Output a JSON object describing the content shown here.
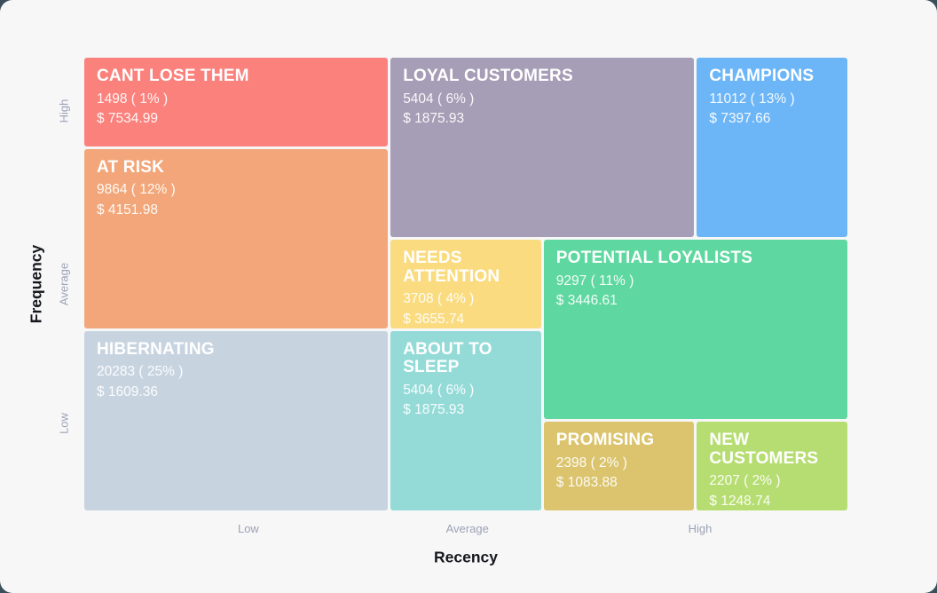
{
  "page": {
    "background_color": "#3B4F5A",
    "card_color": "#F7F7F8"
  },
  "chart_data": {
    "type": "treemap",
    "xlabel": "Recency",
    "ylabel": "Frequency",
    "x_ticks": [
      {
        "label": "Low",
        "pos_percent": 21.5
      },
      {
        "label": "Average",
        "pos_percent": 50.2
      },
      {
        "label": "High",
        "pos_percent": 80.7
      }
    ],
    "y_ticks": [
      {
        "label": "High",
        "pos_percent": 11.8
      },
      {
        "label": "Average",
        "pos_percent": 50
      },
      {
        "label": "Low",
        "pos_percent": 80.8
      }
    ],
    "grid": {
      "columns": 5,
      "rows": 5
    },
    "segments": [
      {
        "slug": "cant-lose-them",
        "name": "CANT LOSE THEM",
        "count": 1498,
        "percent": 1,
        "monetary": 7534.99,
        "count_label": "1498 ( 1% )",
        "monetary_label": "$ 7534.99",
        "color": "#FA817C",
        "recency": "Low",
        "frequency": "High",
        "area": {
          "col": 1,
          "colspan": 2,
          "row": 1,
          "rowspan": 1
        }
      },
      {
        "slug": "loyal-customers",
        "name": "LOYAL CUSTOMERS",
        "count": 5404,
        "percent": 6,
        "monetary": 1875.93,
        "count_label": "5404 ( 6% )",
        "monetary_label": "$ 1875.93",
        "color": "#A69DB6",
        "recency": "Average",
        "frequency": "High",
        "area": {
          "col": 3,
          "colspan": 2,
          "row": 1,
          "rowspan": 2
        }
      },
      {
        "slug": "champions",
        "name": "CHAMPIONS",
        "count": 11012,
        "percent": 13,
        "monetary": 7397.66,
        "count_label": "11012 ( 13% )",
        "monetary_label": "$ 7397.66",
        "color": "#6CB6F8",
        "recency": "High",
        "frequency": "High",
        "area": {
          "col": 5,
          "colspan": 1,
          "row": 1,
          "rowspan": 2
        }
      },
      {
        "slug": "at-risk",
        "name": "AT RISK",
        "count": 9864,
        "percent": 12,
        "monetary": 4151.98,
        "count_label": "9864 ( 12% )",
        "monetary_label": "$ 4151.98",
        "color": "#F2A679",
        "recency": "Low",
        "frequency": "Average",
        "area": {
          "col": 1,
          "colspan": 2,
          "row": 2,
          "rowspan": 2
        }
      },
      {
        "slug": "needs-attention",
        "name": "NEEDS ATTENTION",
        "count": 3708,
        "percent": 4,
        "monetary": 3655.74,
        "count_label": "3708 ( 4% )",
        "monetary_label": "$ 3655.74",
        "color": "#FADB80",
        "recency": "Average",
        "frequency": "Average",
        "area": {
          "col": 3,
          "colspan": 1,
          "row": 3,
          "rowspan": 1
        }
      },
      {
        "slug": "potential-loyalists",
        "name": "POTENTIAL LOYALISTS",
        "count": 9297,
        "percent": 11,
        "monetary": 3446.61,
        "count_label": "9297 ( 11% )",
        "monetary_label": "$ 3446.61",
        "color": "#5ED8A0",
        "recency": "High",
        "frequency": "Average",
        "area": {
          "col": 4,
          "colspan": 2,
          "row": 3,
          "rowspan": 2
        }
      },
      {
        "slug": "hibernating",
        "name": "HIBERNATING",
        "count": 20283,
        "percent": 25,
        "monetary": 1609.36,
        "count_label": "20283 ( 25% )",
        "monetary_label": "$ 1609.36",
        "color": "#C7D4E0",
        "recency": "Low",
        "frequency": "Low",
        "area": {
          "col": 1,
          "colspan": 2,
          "row": 4,
          "rowspan": 2
        }
      },
      {
        "slug": "about-to-sleep",
        "name": "ABOUT TO SLEEP",
        "count": 5404,
        "percent": 6,
        "monetary": 1875.93,
        "count_label": "5404 ( 6% )",
        "monetary_label": "$ 1875.93",
        "color": "#94DBD8",
        "recency": "Average",
        "frequency": "Low",
        "area": {
          "col": 3,
          "colspan": 1,
          "row": 4,
          "rowspan": 2
        }
      },
      {
        "slug": "promising",
        "name": "PROMISING",
        "count": 2398,
        "percent": 2,
        "monetary": 1083.88,
        "count_label": "2398 ( 2% )",
        "monetary_label": "$ 1083.88",
        "color": "#DBC46D",
        "recency": "High",
        "frequency": "Low",
        "area": {
          "col": 4,
          "colspan": 1,
          "row": 5,
          "rowspan": 1
        }
      },
      {
        "slug": "new-customers",
        "name": "NEW CUSTOMERS",
        "count": 2207,
        "percent": 2,
        "monetary": 1248.74,
        "count_label": "2207 ( 2% )",
        "monetary_label": "$ 1248.74",
        "color": "#B6DD71",
        "recency": "High",
        "frequency": "Low",
        "area": {
          "col": 5,
          "colspan": 1,
          "row": 5,
          "rowspan": 1
        }
      }
    ]
  }
}
